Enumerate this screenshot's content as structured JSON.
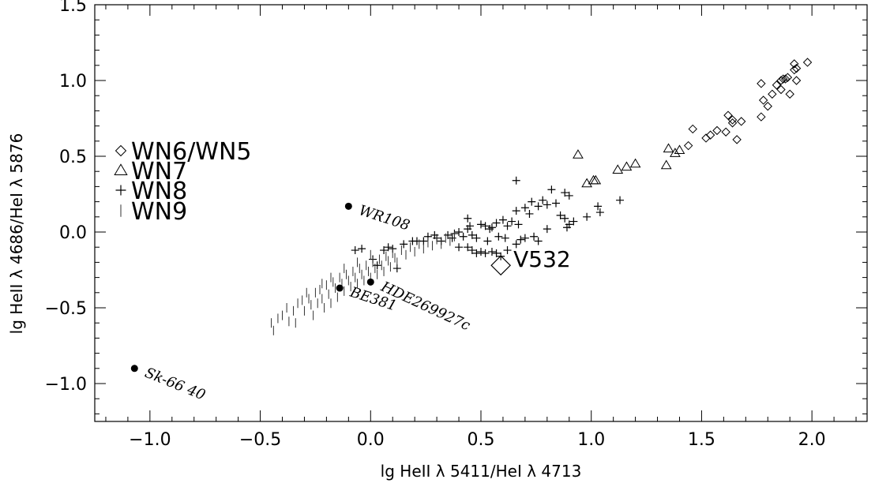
{
  "chart_data": {
    "type": "scatter",
    "xlabel": "lg HeII λ 5411/HeI λ 4713",
    "ylabel": "lg HeII λ 4686/HeI λ 5876",
    "xlim": [
      -1.25,
      2.25
    ],
    "ylim": [
      -1.25,
      1.5
    ],
    "x_ticks": [
      -1.0,
      -0.5,
      0.0,
      0.5,
      1.0,
      1.5,
      2.0
    ],
    "x_tick_labels": [
      "−1.0",
      "−0.5",
      "0.0",
      "0.5",
      "1.0",
      "1.5",
      "2.0"
    ],
    "y_ticks": [
      -1.0,
      -0.5,
      0.0,
      0.5,
      1.0,
      1.5
    ],
    "y_tick_labels": [
      "−1.0",
      "−0.5",
      "0.0",
      "0.5",
      "1.0",
      "1.5"
    ],
    "grid": false,
    "legend": {
      "placement": "left",
      "entries": [
        {
          "marker": "diamond",
          "label": "WN6/WN5"
        },
        {
          "marker": "triangle",
          "label": "WN7"
        },
        {
          "marker": "plus",
          "label": "WN8"
        },
        {
          "marker": "bar",
          "label": "WN9"
        }
      ]
    },
    "series": [
      {
        "marker": "diamond",
        "points": [
          [
            1.44,
            0.57
          ],
          [
            1.46,
            0.68
          ],
          [
            1.52,
            0.62
          ],
          [
            1.54,
            0.64
          ],
          [
            1.57,
            0.67
          ],
          [
            1.61,
            0.66
          ],
          [
            1.62,
            0.77
          ],
          [
            1.64,
            0.72
          ],
          [
            1.66,
            0.61
          ],
          [
            1.64,
            0.74
          ],
          [
            1.68,
            0.73
          ],
          [
            1.77,
            0.98
          ],
          [
            1.78,
            0.87
          ],
          [
            1.77,
            0.76
          ],
          [
            1.8,
            0.83
          ],
          [
            1.82,
            0.91
          ],
          [
            1.84,
            0.97
          ],
          [
            1.86,
            1.0
          ],
          [
            1.87,
            1.01
          ],
          [
            1.88,
            1.01
          ],
          [
            1.9,
            0.91
          ],
          [
            1.92,
            1.07
          ],
          [
            1.92,
            1.11
          ],
          [
            1.93,
            1.08
          ],
          [
            1.93,
            1.0
          ],
          [
            1.98,
            1.12
          ],
          [
            1.86,
            0.94
          ],
          [
            1.89,
            1.02
          ]
        ]
      },
      {
        "marker": "triangle",
        "points": [
          [
            0.94,
            0.51
          ],
          [
            0.98,
            0.32
          ],
          [
            1.01,
            0.34
          ],
          [
            1.02,
            0.34
          ],
          [
            1.12,
            0.41
          ],
          [
            1.16,
            0.43
          ],
          [
            1.2,
            0.45
          ],
          [
            1.34,
            0.44
          ],
          [
            1.35,
            0.55
          ],
          [
            1.38,
            0.52
          ],
          [
            1.4,
            0.54
          ]
        ]
      },
      {
        "marker": "plus",
        "points": [
          [
            -0.07,
            -0.12
          ],
          [
            -0.04,
            -0.11
          ],
          [
            0.01,
            -0.18
          ],
          [
            0.03,
            -0.22
          ],
          [
            0.06,
            -0.12
          ],
          [
            0.08,
            -0.1
          ],
          [
            0.1,
            -0.11
          ],
          [
            0.12,
            -0.24
          ],
          [
            0.15,
            -0.08
          ],
          [
            0.19,
            -0.06
          ],
          [
            0.21,
            -0.06
          ],
          [
            0.24,
            -0.06
          ],
          [
            0.26,
            -0.03
          ],
          [
            0.29,
            -0.02
          ],
          [
            0.3,
            -0.04
          ],
          [
            0.32,
            -0.06
          ],
          [
            0.35,
            -0.02
          ],
          [
            0.37,
            -0.04
          ],
          [
            0.38,
            -0.01
          ],
          [
            0.4,
            0.0
          ],
          [
            0.42,
            -0.03
          ],
          [
            0.44,
            0.02
          ],
          [
            0.44,
            0.09
          ],
          [
            0.45,
            0.04
          ],
          [
            0.46,
            -0.02
          ],
          [
            0.48,
            -0.04
          ],
          [
            0.5,
            0.05
          ],
          [
            0.52,
            0.04
          ],
          [
            0.53,
            -0.06
          ],
          [
            0.55,
            0.03
          ],
          [
            0.57,
            0.06
          ],
          [
            0.58,
            -0.03
          ],
          [
            0.6,
            0.08
          ],
          [
            0.61,
            -0.04
          ],
          [
            0.62,
            0.04
          ],
          [
            0.64,
            0.07
          ],
          [
            0.66,
            0.34
          ],
          [
            0.67,
            0.05
          ],
          [
            0.66,
            0.14
          ],
          [
            0.7,
            0.16
          ],
          [
            0.73,
            0.2
          ],
          [
            0.76,
            0.17
          ],
          [
            0.78,
            0.21
          ],
          [
            0.8,
            0.18
          ],
          [
            0.82,
            0.28
          ],
          [
            0.84,
            0.19
          ],
          [
            0.86,
            0.11
          ],
          [
            0.88,
            0.26
          ],
          [
            0.89,
            0.03
          ],
          [
            0.9,
            0.24
          ],
          [
            0.92,
            0.07
          ],
          [
            0.88,
            0.09
          ],
          [
            0.9,
            0.05
          ],
          [
            0.98,
            0.1
          ],
          [
            1.03,
            0.17
          ],
          [
            1.04,
            0.13
          ],
          [
            1.13,
            0.21
          ],
          [
            0.7,
            -0.04
          ],
          [
            0.74,
            -0.03
          ],
          [
            0.68,
            -0.05
          ],
          [
            0.55,
            -0.13
          ],
          [
            0.59,
            -0.16
          ],
          [
            0.57,
            -0.14
          ],
          [
            0.52,
            -0.14
          ],
          [
            0.5,
            -0.13
          ],
          [
            0.48,
            -0.14
          ],
          [
            0.46,
            -0.12
          ],
          [
            0.44,
            -0.1
          ],
          [
            0.4,
            -0.1
          ],
          [
            0.62,
            -0.12
          ],
          [
            0.66,
            -0.08
          ],
          [
            0.76,
            -0.06
          ],
          [
            0.8,
            0.02
          ],
          [
            0.72,
            0.12
          ],
          [
            0.54,
            0.02
          ]
        ]
      },
      {
        "marker": "bar",
        "points": [
          [
            -0.45,
            -0.6
          ],
          [
            -0.44,
            -0.65
          ],
          [
            -0.42,
            -0.57
          ],
          [
            -0.4,
            -0.55
          ],
          [
            -0.37,
            -0.59
          ],
          [
            -0.35,
            -0.52
          ],
          [
            -0.34,
            -0.6
          ],
          [
            -0.33,
            -0.47
          ],
          [
            -0.31,
            -0.45
          ],
          [
            -0.3,
            -0.52
          ],
          [
            -0.28,
            -0.44
          ],
          [
            -0.27,
            -0.48
          ],
          [
            -0.26,
            -0.55
          ],
          [
            -0.25,
            -0.4
          ],
          [
            -0.24,
            -0.47
          ],
          [
            -0.23,
            -0.38
          ],
          [
            -0.22,
            -0.44
          ],
          [
            -0.21,
            -0.5
          ],
          [
            -0.2,
            -0.35
          ],
          [
            -0.19,
            -0.41
          ],
          [
            -0.18,
            -0.47
          ],
          [
            -0.17,
            -0.33
          ],
          [
            -0.16,
            -0.37
          ],
          [
            -0.15,
            -0.43
          ],
          [
            -0.14,
            -0.3
          ],
          [
            -0.13,
            -0.34
          ],
          [
            -0.12,
            -0.39
          ],
          [
            -0.11,
            -0.28
          ],
          [
            -0.1,
            -0.32
          ],
          [
            -0.09,
            -0.36
          ],
          [
            -0.08,
            -0.26
          ],
          [
            -0.07,
            -0.3
          ],
          [
            -0.06,
            -0.34
          ],
          [
            -0.05,
            -0.24
          ],
          [
            -0.04,
            -0.28
          ],
          [
            -0.03,
            -0.32
          ],
          [
            -0.02,
            -0.22
          ],
          [
            -0.01,
            -0.26
          ],
          [
            0.0,
            -0.3
          ],
          [
            0.01,
            -0.2
          ],
          [
            0.02,
            -0.24
          ],
          [
            0.03,
            -0.28
          ],
          [
            0.04,
            -0.18
          ],
          [
            0.05,
            -0.22
          ],
          [
            0.06,
            -0.26
          ],
          [
            0.07,
            -0.16
          ],
          [
            0.08,
            -0.19
          ],
          [
            0.09,
            -0.23
          ],
          [
            0.1,
            -0.14
          ],
          [
            0.11,
            -0.17
          ],
          [
            0.12,
            -0.2
          ],
          [
            0.14,
            -0.12
          ],
          [
            0.16,
            -0.15
          ],
          [
            0.18,
            -0.1
          ],
          [
            0.2,
            -0.13
          ],
          [
            0.22,
            -0.08
          ],
          [
            0.24,
            -0.11
          ],
          [
            0.26,
            -0.07
          ],
          [
            0.28,
            -0.09
          ],
          [
            0.3,
            -0.05
          ],
          [
            0.32,
            -0.08
          ],
          [
            0.34,
            -0.04
          ],
          [
            0.36,
            -0.06
          ],
          [
            0.38,
            -0.03
          ],
          [
            -0.18,
            -0.3
          ],
          [
            -0.12,
            -0.24
          ],
          [
            -0.06,
            -0.2
          ],
          [
            0.0,
            -0.15
          ],
          [
            -0.22,
            -0.34
          ],
          [
            -0.29,
            -0.4
          ],
          [
            -0.38,
            -0.5
          ]
        ]
      }
    ],
    "highlight": {
      "marker": "large-diamond",
      "x": 0.59,
      "y": -0.22,
      "label": "V532"
    },
    "annotated_points": [
      {
        "x": -0.1,
        "y": 0.17,
        "label": "WR108",
        "label_angle": 18
      },
      {
        "x": 0.0,
        "y": -0.33,
        "label": "HDE269927c",
        "label_angle": 25
      },
      {
        "x": -0.14,
        "y": -0.37,
        "label": "BE381",
        "label_angle": 18
      },
      {
        "x": -1.07,
        "y": -0.9,
        "label": "Sk-66 40",
        "label_angle": 22
      }
    ]
  }
}
